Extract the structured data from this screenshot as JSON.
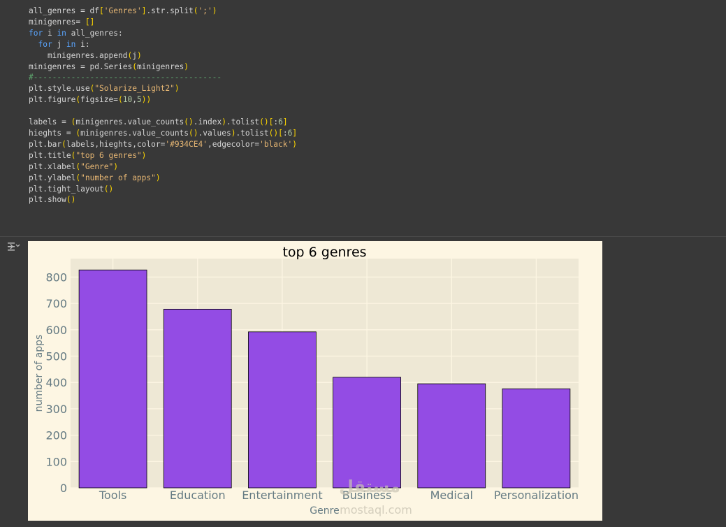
{
  "code_cell": {
    "lines": [
      "all_genres = df['Genres'].str.split(';')",
      "minigenres= []",
      "for i in all_genres:",
      "  for j in i:",
      "    minigenres.append(j)",
      "minigenres = pd.Series(minigenres)",
      "#----------------------------------------",
      "plt.style.use(\"Solarize_Light2\")",
      "plt.figure(figsize=(10,5))",
      "",
      "labels = (minigenres.value_counts().index).tolist()[:6]",
      "hieghts = (minigenres.value_counts().values).tolist()[:6]",
      "plt.bar(labels,hieghts,color='#934CE4',edgecolor='black')",
      "plt.title(\"top 6 genres\")",
      "plt.xlabel(\"Genre\")",
      "plt.ylabel(\"number of apps\")",
      "plt.tight_layout()",
      "plt.show()"
    ]
  },
  "output": {
    "icon": "output-toggle-icon"
  },
  "watermark": {
    "arabic": "مستقل",
    "latin": "mostaql.com"
  },
  "colors": {
    "bar_fill": "#934CE4",
    "bar_edge": "#000000",
    "figure_bg": "#fdf6e3",
    "axes_bg": "#eee8d5"
  },
  "chart_data": {
    "type": "bar",
    "title": "top 6 genres",
    "xlabel": "Genre",
    "ylabel": "number of apps",
    "categories": [
      "Tools",
      "Education",
      "Entertainment",
      "Business",
      "Medical",
      "Personalization"
    ],
    "values": [
      827,
      678,
      592,
      420,
      395,
      376
    ],
    "ylim": [
      0,
      870
    ],
    "yticks": [
      0,
      100,
      200,
      300,
      400,
      500,
      600,
      700,
      800
    ],
    "grid": true
  }
}
